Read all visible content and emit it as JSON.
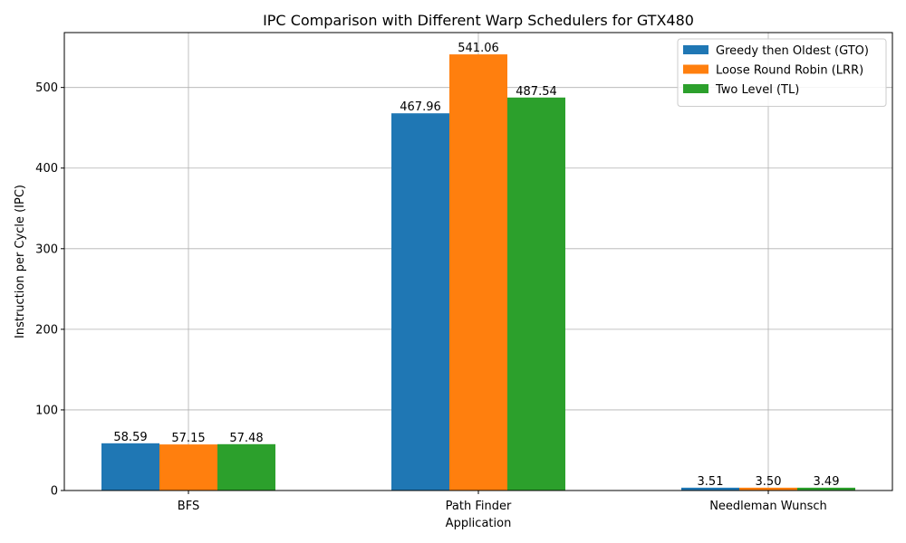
{
  "chart_data": {
    "type": "bar",
    "title": "IPC Comparison with Different Warp Schedulers for GTX480",
    "xlabel": "Application",
    "ylabel": "Instruction per Cycle (IPC)",
    "categories": [
      "BFS",
      "Path Finder",
      "Needleman Wunsch"
    ],
    "series": [
      {
        "name": "Greedy then Oldest (GTO)",
        "values": [
          58.59,
          467.96,
          3.51
        ],
        "labels": [
          "58.59",
          "467.96",
          "3.51"
        ],
        "color": "#1f77b4"
      },
      {
        "name": "Loose Round Robin (LRR)",
        "values": [
          57.15,
          541.06,
          3.5
        ],
        "labels": [
          "57.15",
          "541.06",
          "3.50"
        ],
        "color": "#ff7f0e"
      },
      {
        "name": "Two Level (TL)",
        "values": [
          57.48,
          487.54,
          3.49
        ],
        "labels": [
          "57.48",
          "487.54",
          "3.49"
        ],
        "color": "#2ca02c"
      }
    ],
    "ylim": [
      0,
      568.11
    ],
    "yticks": [
      0,
      100,
      200,
      300,
      400,
      500
    ],
    "grid": true,
    "legend_position": "top-right"
  }
}
